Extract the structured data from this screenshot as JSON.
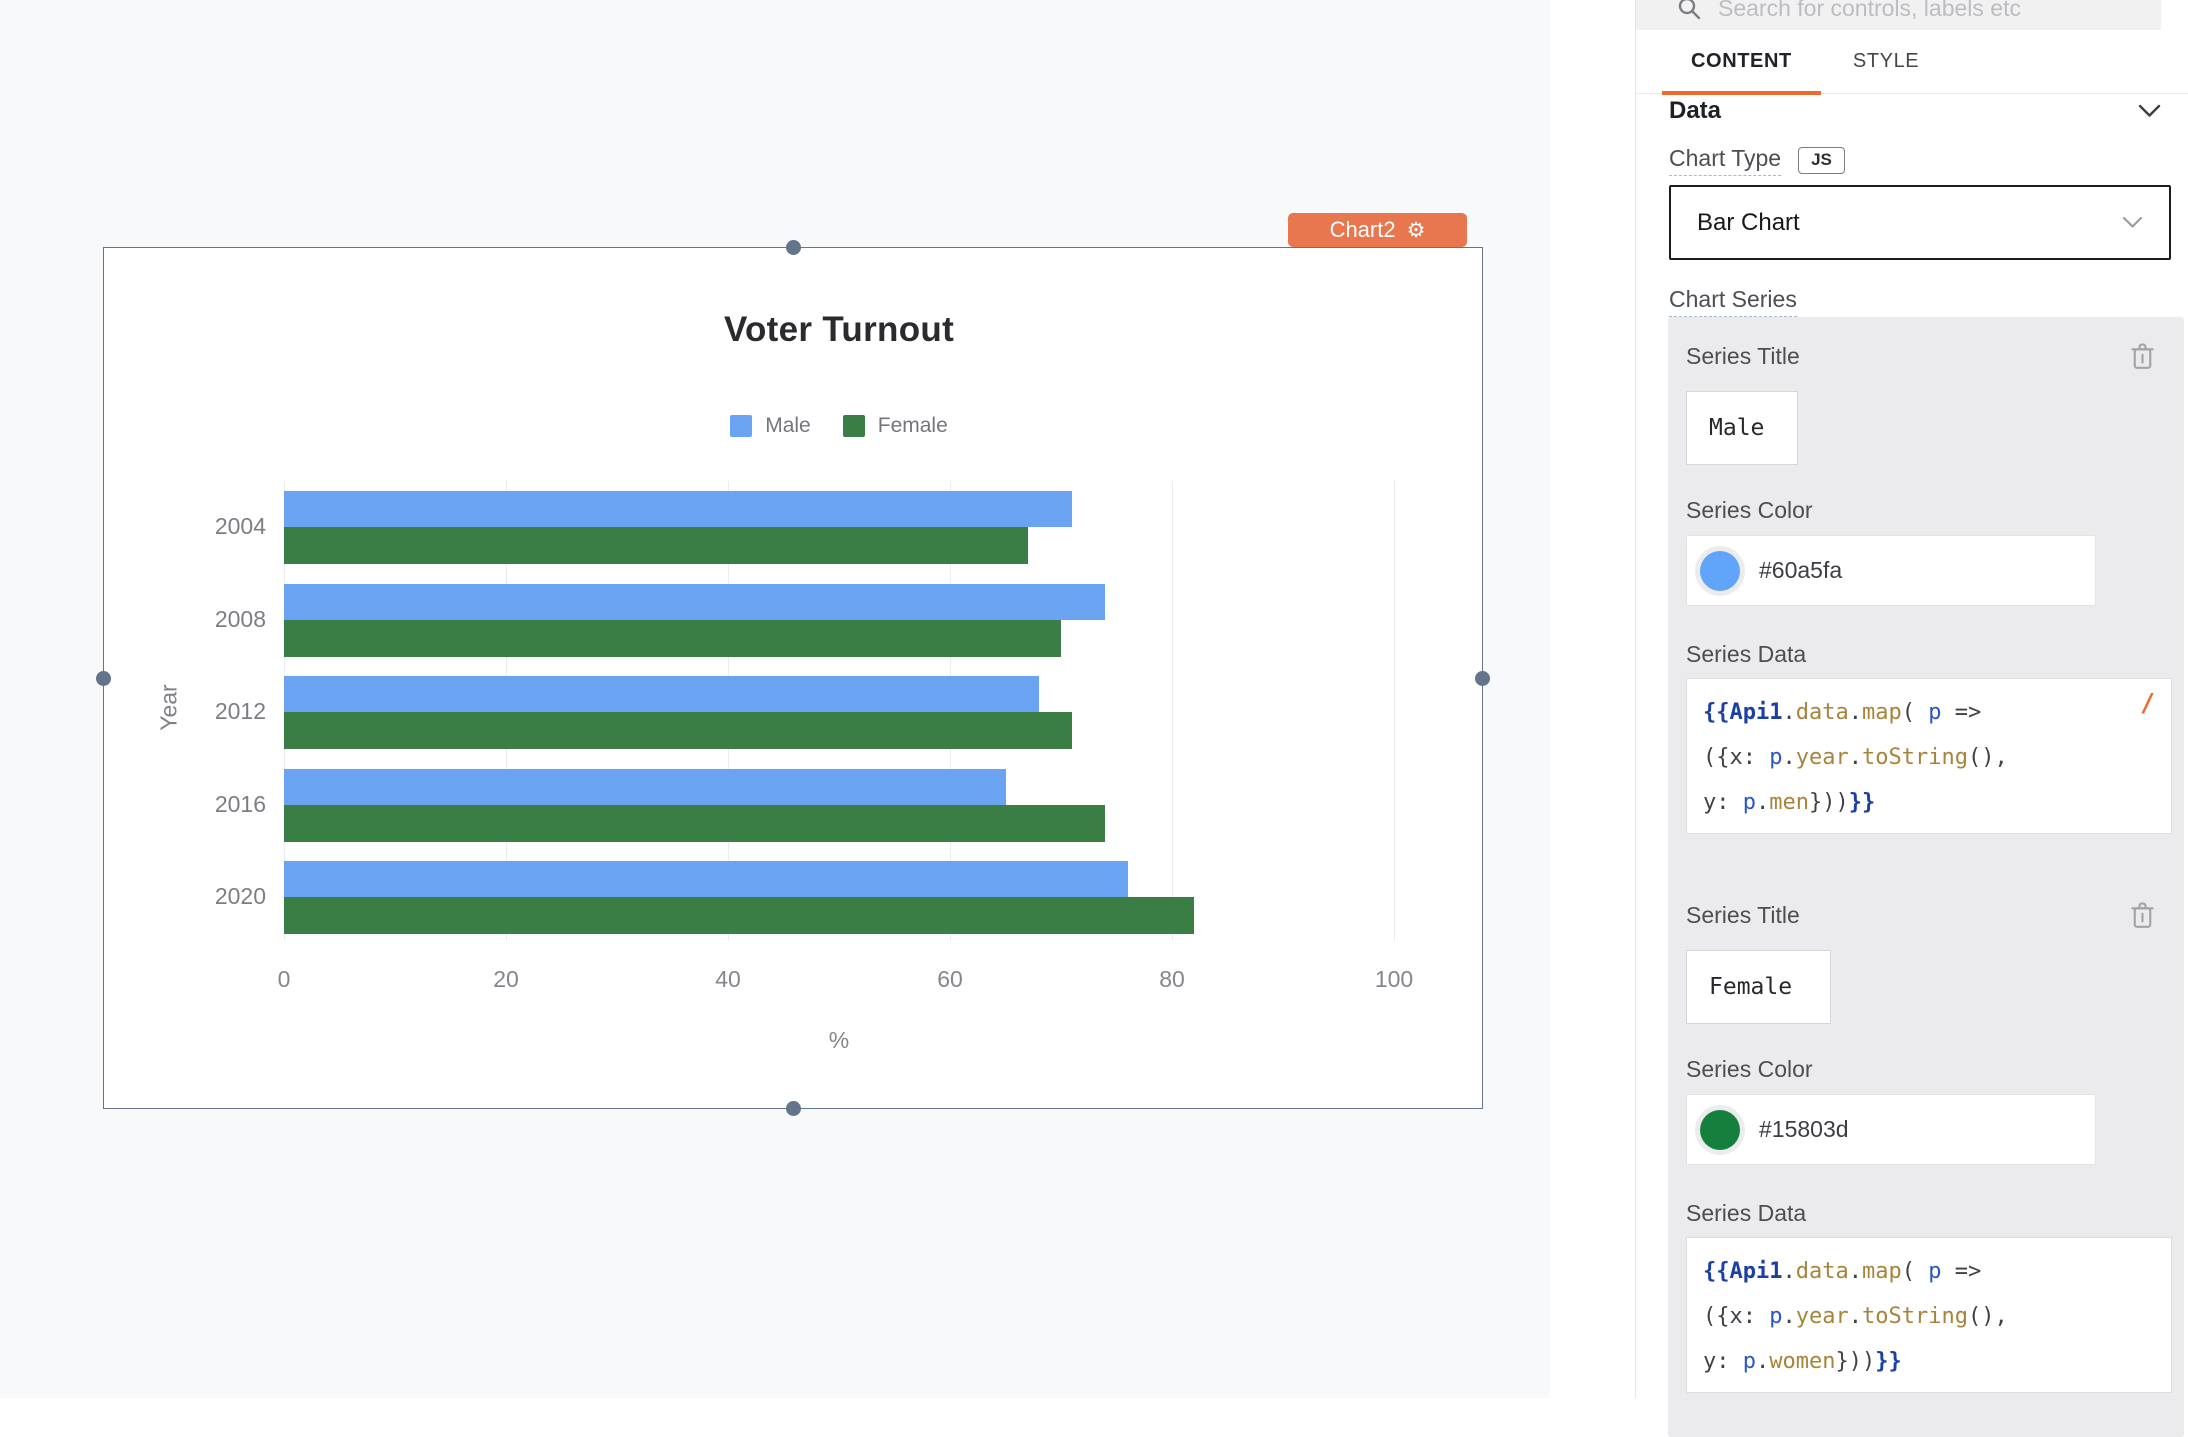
{
  "canvas": {
    "widget": {
      "tag_label": "Chart2"
    }
  },
  "chart_data": {
    "type": "bar",
    "orientation": "horizontal",
    "title": "Voter Turnout",
    "categories": [
      "2004",
      "2008",
      "2012",
      "2016",
      "2020"
    ],
    "series": [
      {
        "name": "Male",
        "color": "#60a5fa",
        "display_color": "#6aa3f2",
        "values": [
          71,
          74,
          68,
          65,
          76
        ]
      },
      {
        "name": "Female",
        "color": "#15803d",
        "display_color": "#3a7d45",
        "values": [
          67,
          70,
          71,
          74,
          82
        ]
      }
    ],
    "xlabel": "%",
    "ylabel": "Year",
    "xlim": [
      0,
      100
    ],
    "xticks": [
      0,
      20,
      40,
      60,
      80,
      100
    ],
    "legend_position": "top",
    "grid": true
  },
  "panel": {
    "search": {
      "placeholder": "Search for controls, labels etc"
    },
    "tabs": {
      "content": "CONTENT",
      "style": "STYLE"
    },
    "data_section": {
      "title": "Data"
    },
    "chart_type": {
      "label": "Chart Type",
      "js_badge": "JS",
      "value": "Bar Chart"
    },
    "chart_series_label": "Chart Series",
    "series_editors": [
      {
        "title_label": "Series Title",
        "title_value": "Male",
        "color_label": "Series Color",
        "color_value": "#60a5fa",
        "data_label": "Series Data",
        "slash_hint": "/",
        "code_tokens": [
          [
            [
              "brace",
              "{{"
            ],
            [
              "entity",
              "Api1"
            ],
            [
              "pun",
              "."
            ],
            [
              "prop",
              "data"
            ],
            [
              "pun",
              "."
            ],
            [
              "prop",
              "map"
            ],
            [
              "pun",
              "( "
            ],
            [
              "var",
              "p"
            ],
            [
              "pun",
              " =>"
            ]
          ],
          [
            [
              "pun",
              "({"
            ],
            [
              "key",
              "x"
            ],
            [
              "pun",
              ": "
            ],
            [
              "var",
              "p"
            ],
            [
              "pun",
              "."
            ],
            [
              "prop",
              "year"
            ],
            [
              "pun",
              "."
            ],
            [
              "prop",
              "toString"
            ],
            [
              "pun",
              "(),"
            ]
          ],
          [
            [
              "key",
              "y"
            ],
            [
              "pun",
              ": "
            ],
            [
              "var",
              "p"
            ],
            [
              "pun",
              "."
            ],
            [
              "prop",
              "men"
            ],
            [
              "pun",
              "}))"
            ],
            [
              "brace",
              "}}"
            ]
          ]
        ]
      },
      {
        "title_label": "Series Title",
        "title_value": "Female",
        "color_label": "Series Color",
        "color_value": "#15803d",
        "data_label": "Series Data",
        "code_tokens": [
          [
            [
              "brace",
              "{{"
            ],
            [
              "entity",
              "Api1"
            ],
            [
              "pun",
              "."
            ],
            [
              "prop",
              "data"
            ],
            [
              "pun",
              "."
            ],
            [
              "prop",
              "map"
            ],
            [
              "pun",
              "( "
            ],
            [
              "var",
              "p"
            ],
            [
              "pun",
              " =>"
            ]
          ],
          [
            [
              "pun",
              "({"
            ],
            [
              "key",
              "x"
            ],
            [
              "pun",
              ": "
            ],
            [
              "var",
              "p"
            ],
            [
              "pun",
              "."
            ],
            [
              "prop",
              "year"
            ],
            [
              "pun",
              "."
            ],
            [
              "prop",
              "toString"
            ],
            [
              "pun",
              "(),"
            ]
          ],
          [
            [
              "key",
              "y"
            ],
            [
              "pun",
              ": "
            ],
            [
              "var",
              "p"
            ],
            [
              "pun",
              "."
            ],
            [
              "prop",
              "women"
            ],
            [
              "pun",
              "}))"
            ],
            [
              "brace",
              "}}"
            ]
          ]
        ]
      }
    ]
  },
  "theme": {
    "accent_orange": "#ee6a2e",
    "widget_tag_orange": "#e8764e",
    "selection_slate": "#64748b",
    "canvas_bg": "#f8f9fa",
    "card_bg": "#ebebed"
  }
}
